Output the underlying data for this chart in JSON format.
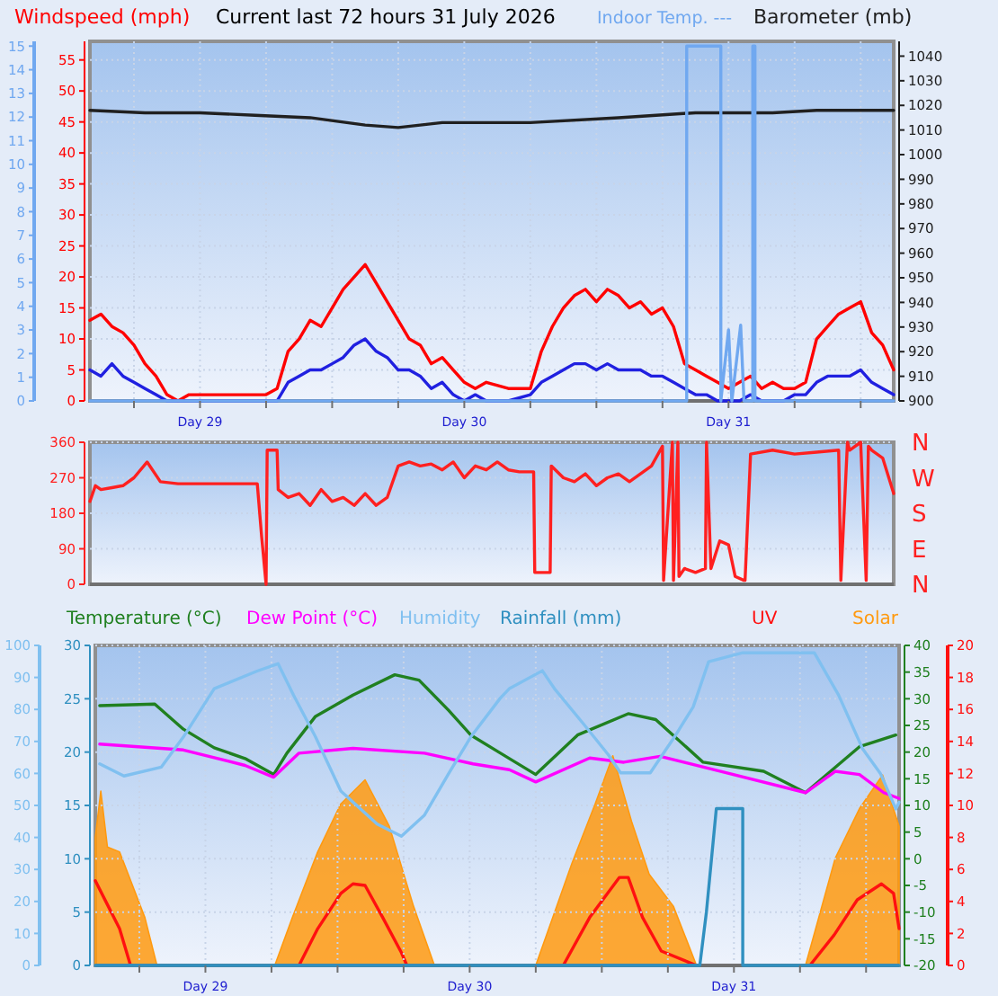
{
  "chart_data": [
    {
      "type": "line",
      "title": "Current last 72 hours 31 July 2026",
      "ylabel": "Windspeed (mph)",
      "y2label": "Barometer (mb)",
      "annotations": [
        "Indoor Temp. ---"
      ],
      "grid": true,
      "xlim": [
        "2026-07-28T14:00",
        "2026-07-31T15:00"
      ],
      "xticks": [
        {
          "value": "2026-07-28T18:00",
          "label": null
        },
        {
          "value": "2026-07-29",
          "label": "Day 29"
        },
        {
          "value": "2026-07-29T06:00",
          "label": null
        },
        {
          "value": "2026-07-29T12:00",
          "label": null
        },
        {
          "value": "2026-07-29T18:00",
          "label": null
        },
        {
          "value": "2026-07-30",
          "label": "Day 30"
        },
        {
          "value": "2026-07-30T06:00",
          "label": null
        },
        {
          "value": "2026-07-30T12:00",
          "label": null
        },
        {
          "value": "2026-07-30T18:00",
          "label": null
        },
        {
          "value": "2026-07-31",
          "label": "Day 31"
        },
        {
          "value": "2026-07-31T06:00",
          "label": null
        },
        {
          "value": "2026-07-31T12:00",
          "label": null
        }
      ],
      "ylim": [
        0,
        58
      ],
      "yticks": [
        0,
        5,
        10,
        15,
        20,
        25,
        30,
        35,
        40,
        45,
        50,
        55
      ],
      "y2lim": [
        900,
        1046
      ],
      "y2ticks": [
        900,
        910,
        920,
        930,
        940,
        950,
        960,
        970,
        980,
        990,
        1000,
        1010,
        1020,
        1030,
        1040
      ],
      "y3lim": [
        0,
        15.2
      ],
      "y3ticks": [
        0,
        1,
        2,
        3,
        4,
        5,
        6,
        7,
        8,
        9,
        10,
        11,
        12,
        13,
        14,
        15
      ],
      "x": [
        "2026-07-28T14:00",
        "2026-07-28T15:00",
        "2026-07-28T16:00",
        "2026-07-28T17:00",
        "2026-07-28T18:00",
        "2026-07-28T19:00",
        "2026-07-28T20:00",
        "2026-07-28T21:00",
        "2026-07-28T22:00",
        "2026-07-28T23:00",
        "2026-07-29T00:00",
        "2026-07-29T02:00",
        "2026-07-29T04:00",
        "2026-07-29T06:00",
        "2026-07-29T07:00",
        "2026-07-29T08:00",
        "2026-07-29T09:00",
        "2026-07-29T10:00",
        "2026-07-29T11:00",
        "2026-07-29T12:00",
        "2026-07-29T13:00",
        "2026-07-29T14:00",
        "2026-07-29T15:00",
        "2026-07-29T16:00",
        "2026-07-29T17:00",
        "2026-07-29T18:00",
        "2026-07-29T19:00",
        "2026-07-29T20:00",
        "2026-07-29T21:00",
        "2026-07-29T22:00",
        "2026-07-29T23:00",
        "2026-07-30T00:00",
        "2026-07-30T01:00",
        "2026-07-30T02:00",
        "2026-07-30T04:00",
        "2026-07-30T06:00",
        "2026-07-30T07:00",
        "2026-07-30T08:00",
        "2026-07-30T09:00",
        "2026-07-30T10:00",
        "2026-07-30T11:00",
        "2026-07-30T12:00",
        "2026-07-30T13:00",
        "2026-07-30T14:00",
        "2026-07-30T15:00",
        "2026-07-30T16:00",
        "2026-07-30T17:00",
        "2026-07-30T18:00",
        "2026-07-30T19:00",
        "2026-07-30T20:00",
        "2026-07-30T21:00",
        "2026-07-30T22:00",
        "2026-07-30T23:00",
        "2026-07-31T00:00",
        "2026-07-31T01:00",
        "2026-07-31T02:00",
        "2026-07-31T03:00",
        "2026-07-31T04:00",
        "2026-07-31T05:00",
        "2026-07-31T06:00",
        "2026-07-31T07:00",
        "2026-07-31T08:00",
        "2026-07-31T09:00",
        "2026-07-31T10:00",
        "2026-07-31T11:00",
        "2026-07-31T12:00",
        "2026-07-31T13:00",
        "2026-07-31T14:00",
        "2026-07-31T15:00"
      ],
      "series": [
        {
          "color": "#ff0000",
          "values": [
            13,
            14,
            12,
            11,
            9,
            6,
            4,
            1,
            0,
            1,
            1,
            1,
            1,
            1,
            2,
            8,
            10,
            13,
            12,
            15,
            18,
            20,
            22,
            19,
            16,
            13,
            10,
            9,
            6,
            7,
            5,
            3,
            2,
            3,
            2,
            2,
            8,
            12,
            15,
            17,
            18,
            16,
            18,
            17,
            15,
            16,
            14,
            15,
            12,
            6,
            5,
            4,
            3,
            2,
            3,
            4,
            2,
            3,
            2,
            2,
            3,
            10,
            12,
            14,
            15,
            16,
            11,
            9,
            5
          ]
        },
        {
          "color": "#2020e0",
          "values": [
            5,
            4,
            6,
            4,
            3,
            2,
            1,
            0,
            0,
            0,
            0,
            0,
            0,
            0,
            0,
            3,
            4,
            5,
            5,
            6,
            7,
            9,
            10,
            8,
            7,
            5,
            5,
            4,
            2,
            3,
            1,
            0,
            1,
            0,
            0,
            1,
            3,
            4,
            5,
            6,
            6,
            5,
            6,
            5,
            5,
            5,
            4,
            4,
            3,
            2,
            1,
            1,
            0,
            0,
            0,
            1,
            0,
            0,
            0,
            1,
            1,
            3,
            4,
            4,
            4,
            5,
            3,
            2,
            1
          ]
        },
        {
          "color": "#202020",
          "axis": "y2",
          "x": [
            "2026-07-28T14:00",
            "2026-07-28T19:00",
            "2026-07-29T00:00",
            "2026-07-29T05:00",
            "2026-07-29T10:00",
            "2026-07-29T15:00",
            "2026-07-29T18:00",
            "2026-07-29T22:00",
            "2026-07-30T06:00",
            "2026-07-30T14:00",
            "2026-07-30T21:00",
            "2026-07-31T04:00",
            "2026-07-31T08:00",
            "2026-07-31T15:00"
          ],
          "values": [
            1018,
            1017,
            1017,
            1016,
            1015,
            1012,
            1011,
            1013,
            1013,
            1015,
            1017,
            1017,
            1018,
            1018
          ]
        },
        {
          "color": "#70a8f0",
          "axis": "y3",
          "x": [
            "2026-07-28T14:00",
            "2026-07-30T20:12",
            "2026-07-30T20:12",
            "2026-07-30T23:18",
            "2026-07-30T23:18",
            "2026-07-31T00:00",
            "2026-07-31T00:18",
            "2026-07-31T01:06",
            "2026-07-31T01:24",
            "2026-07-31T02:12",
            "2026-07-31T02:12",
            "2026-07-31T02:24",
            "2026-07-31T02:24",
            "2026-07-31T15:00"
          ],
          "values": [
            0,
            0,
            15,
            15,
            0,
            3,
            0,
            3.2,
            0,
            0,
            15,
            15,
            0,
            0
          ]
        }
      ]
    },
    {
      "type": "line",
      "grid": "y",
      "tick_labels": "y",
      "annotations": [
        "N",
        "W",
        "S",
        "E",
        "N"
      ],
      "xlim": [
        "2026-07-28T14:00",
        "2026-07-31T15:00"
      ],
      "ylim": [
        0,
        360
      ],
      "yticks": [
        0,
        90,
        180,
        270,
        360
      ],
      "series": [
        {
          "color": "#ff2020",
          "x": [
            "2026-07-28T14:00",
            "2026-07-28T14:30",
            "2026-07-28T15:00",
            "2026-07-28T16:00",
            "2026-07-28T17:00",
            "2026-07-28T18:00",
            "2026-07-28T19:12",
            "2026-07-28T20:24",
            "2026-07-28T22:00",
            "2026-07-29T00:00",
            "2026-07-29T02:00",
            "2026-07-29T05:12",
            "2026-07-29T05:36",
            "2026-07-29T06:00",
            "2026-07-29T06:06",
            "2026-07-29T06:12",
            "2026-07-29T07:00",
            "2026-07-29T07:06",
            "2026-07-29T08:00",
            "2026-07-29T09:00",
            "2026-07-29T10:00",
            "2026-07-29T11:00",
            "2026-07-29T12:00",
            "2026-07-29T13:00",
            "2026-07-29T14:00",
            "2026-07-29T15:00",
            "2026-07-29T16:00",
            "2026-07-29T17:00",
            "2026-07-29T18:00",
            "2026-07-29T19:00",
            "2026-07-29T20:00",
            "2026-07-29T21:00",
            "2026-07-29T22:00",
            "2026-07-29T23:00",
            "2026-07-30T00:00",
            "2026-07-30T01:00",
            "2026-07-30T02:00",
            "2026-07-30T03:00",
            "2026-07-30T04:00",
            "2026-07-30T05:00",
            "2026-07-30T06:18",
            "2026-07-30T06:24",
            "2026-07-30T07:48",
            "2026-07-30T07:54",
            "2026-07-30T09:00",
            "2026-07-30T10:00",
            "2026-07-30T11:00",
            "2026-07-30T12:00",
            "2026-07-30T13:00",
            "2026-07-30T14:00",
            "2026-07-30T15:00",
            "2026-07-30T16:00",
            "2026-07-30T17:00",
            "2026-07-30T18:00",
            "2026-07-30T18:06",
            "2026-07-30T18:54",
            "2026-07-30T19:00",
            "2026-07-30T19:24",
            "2026-07-30T19:30",
            "2026-07-30T20:00",
            "2026-07-30T21:00",
            "2026-07-30T21:54",
            "2026-07-30T22:00",
            "2026-07-30T22:24",
            "2026-07-30T23:12",
            "2026-07-31T00:00",
            "2026-07-31T00:36",
            "2026-07-31T01:24",
            "2026-07-31T01:30",
            "2026-07-31T02:00",
            "2026-07-31T04:00",
            "2026-07-31T06:00",
            "2026-07-31T08:00",
            "2026-07-31T10:00",
            "2026-07-31T10:12",
            "2026-07-31T10:48",
            "2026-07-31T11:00",
            "2026-07-31T12:00",
            "2026-07-31T12:30",
            "2026-07-31T12:42",
            "2026-07-31T13:00",
            "2026-07-31T14:00",
            "2026-07-31T15:00"
          ],
          "values": [
            210,
            250,
            240,
            245,
            250,
            270,
            310,
            260,
            255,
            255,
            255,
            255,
            120,
            0,
            340,
            340,
            340,
            240,
            220,
            230,
            200,
            240,
            210,
            220,
            200,
            230,
            200,
            220,
            300,
            310,
            300,
            305,
            290,
            310,
            270,
            300,
            290,
            310,
            290,
            285,
            285,
            30,
            30,
            300,
            270,
            260,
            280,
            250,
            270,
            280,
            260,
            280,
            300,
            350,
            10,
            360,
            10,
            360,
            20,
            40,
            30,
            40,
            360,
            40,
            110,
            100,
            20,
            10,
            10,
            330,
            340,
            330,
            335,
            340,
            10,
            360,
            340,
            360,
            10,
            350,
            340,
            320,
            230
          ]
        }
      ]
    },
    {
      "type": "line",
      "legend": "top",
      "grid": true,
      "xlim": [
        "2026-07-28T14:00",
        "2026-07-31T15:00"
      ],
      "xticks": [
        {
          "value": "2026-07-28T18:00",
          "label": null
        },
        {
          "value": "2026-07-29",
          "label": "Day 29"
        },
        {
          "value": "2026-07-29T06:00",
          "label": null
        },
        {
          "value": "2026-07-29T12:00",
          "label": null
        },
        {
          "value": "2026-07-29T18:00",
          "label": null
        },
        {
          "value": "2026-07-30",
          "label": "Day 30"
        },
        {
          "value": "2026-07-30T06:00",
          "label": null
        },
        {
          "value": "2026-07-30T12:00",
          "label": null
        },
        {
          "value": "2026-07-30T18:00",
          "label": null
        },
        {
          "value": "2026-07-31",
          "label": "Day 31"
        },
        {
          "value": "2026-07-31T06:00",
          "label": null
        },
        {
          "value": "2026-07-31T12:00",
          "label": null
        }
      ],
      "ylim": [
        0,
        30
      ],
      "yticks": [
        0,
        5,
        10,
        15,
        20,
        25,
        30
      ],
      "y2lim": [
        -20,
        40
      ],
      "y2ticks": [
        -20,
        -15,
        -10,
        -5,
        0,
        5,
        10,
        15,
        20,
        25,
        30,
        35,
        40
      ],
      "y3lim": [
        0,
        100
      ],
      "y3ticks": [
        0,
        10,
        20,
        30,
        40,
        50,
        60,
        70,
        80,
        90,
        100
      ],
      "series": [
        {
          "name": "Temperature (°C)",
          "color": "#208020",
          "axis": "y2",
          "x": [
            "2026-07-28T14:24",
            "2026-07-28T19:24",
            "2026-07-28T22:00",
            "2026-07-29T00:48",
            "2026-07-29T03:36",
            "2026-07-29T06:12",
            "2026-07-29T07:24",
            "2026-07-29T10:00",
            "2026-07-29T13:24",
            "2026-07-29T17:12",
            "2026-07-29T19:24",
            "2026-07-29T22:06",
            "2026-07-30T00:06",
            "2026-07-30T02:48",
            "2026-07-30T06:00",
            "2026-07-30T09:48",
            "2026-07-30T14:24",
            "2026-07-30T16:54",
            "2026-07-30T21:12",
            "2026-07-31T02:42",
            "2026-07-31T06:30",
            "2026-07-31T11:24",
            "2026-07-31T14:42"
          ],
          "values": [
            28.7,
            29,
            24.3,
            20.8,
            18.8,
            15.8,
            19.8,
            26.7,
            30.7,
            34.5,
            33.5,
            27.8,
            23.2,
            19.8,
            15.8,
            23.2,
            27.2,
            26.1,
            18.1,
            16.4,
            12.4,
            21,
            23.2
          ]
        },
        {
          "name": "Dew Point (°C)",
          "color": "#ff00ff",
          "axis": "y2",
          "x": [
            "2026-07-28T14:24",
            "2026-07-28T22:00",
            "2026-07-29T03:36",
            "2026-07-29T06:12",
            "2026-07-29T08:30",
            "2026-07-29T13:24",
            "2026-07-29T19:54",
            "2026-07-30T00:18",
            "2026-07-30T03:36",
            "2026-07-30T06:00",
            "2026-07-30T10:54",
            "2026-07-30T14:00",
            "2026-07-30T17:18",
            "2026-07-30T22:48",
            "2026-07-31T06:30",
            "2026-07-31T09:12",
            "2026-07-31T11:24",
            "2026-07-31T13:36",
            "2026-07-31T15:00"
          ],
          "values": [
            21.5,
            20.4,
            17.5,
            15.3,
            19.8,
            20.7,
            19.8,
            17.8,
            16.7,
            14.4,
            18.9,
            18.1,
            19.2,
            16.4,
            12.4,
            16.4,
            15.8,
            12.4,
            11.3
          ]
        },
        {
          "name": "Humidity",
          "color": "#80c0f0",
          "axis": "y3",
          "x": [
            "2026-07-28T14:24",
            "2026-07-28T16:36",
            "2026-07-28T20:00",
            "2026-07-28T22:00",
            "2026-07-29T00:48",
            "2026-07-29T04:42",
            "2026-07-29T06:36",
            "2026-07-29T08:00",
            "2026-07-29T10:00",
            "2026-07-29T12:18",
            "2026-07-29T15:36",
            "2026-07-29T17:48",
            "2026-07-29T19:54",
            "2026-07-29T22:06",
            "2026-07-30T00:06",
            "2026-07-30T02:48",
            "2026-07-30T03:36",
            "2026-07-30T06:36",
            "2026-07-30T07:42",
            "2026-07-30T10:24",
            "2026-07-30T12:36",
            "2026-07-30T13:42",
            "2026-07-30T16:24",
            "2026-07-30T18:36",
            "2026-07-30T20:18",
            "2026-07-30T21:42",
            "2026-07-31T00:48",
            "2026-07-31T07:18",
            "2026-07-31T09:30",
            "2026-07-31T11:42",
            "2026-07-31T13:18",
            "2026-07-31T14:42",
            "2026-07-31T15:00"
          ],
          "values": [
            63,
            59.2,
            62,
            71.4,
            86.5,
            92,
            94.3,
            84.5,
            71.4,
            54.5,
            44.2,
            40.4,
            47,
            60,
            71.4,
            83.6,
            86.5,
            92.1,
            86.5,
            75.2,
            65.8,
            60.2,
            60.2,
            71.4,
            80.8,
            94.9,
            97.7,
            97.7,
            84.5,
            67.6,
            60,
            48.9,
            51
          ]
        },
        {
          "name": "Rainfall (mm)",
          "color": "#3090c0",
          "x": [
            "2026-07-28T14:00",
            "2026-07-30T20:54",
            "2026-07-30T21:30",
            "2026-07-30T22:24",
            "2026-07-31T00:48",
            "2026-07-31T00:48",
            "2026-07-31T15:00"
          ],
          "values": [
            0,
            0,
            5,
            14.7,
            14.7,
            0,
            0
          ]
        }
      ]
    },
    {
      "type": "line",
      "legend": "top",
      "tick_labels": "y",
      "xlim": [
        "2026-07-28T14:00",
        "2026-07-31T15:00"
      ],
      "ylim": [
        0,
        20
      ],
      "yticks": [
        0,
        2,
        4,
        6,
        8,
        10,
        12,
        14,
        16,
        18,
        20
      ],
      "series": [
        {
          "name": "UV",
          "color": "#ff1010",
          "x": [
            "2026-07-28T14:00",
            "2026-07-28T15:06",
            "2026-07-28T16:12",
            "2026-07-28T17:12",
            "2026-07-28T18:30",
            "2026-07-29T08:30",
            "2026-07-29T10:12",
            "2026-07-29T12:18",
            "2026-07-29T13:24",
            "2026-07-29T14:30",
            "2026-07-29T16:06",
            "2026-07-29T17:48",
            "2026-07-29T18:18",
            "2026-07-30T08:30",
            "2026-07-30T10:54",
            "2026-07-30T13:36",
            "2026-07-30T14:24",
            "2026-07-30T15:42",
            "2026-07-30T17:24",
            "2026-07-30T20:36",
            "2026-07-31T06:54",
            "2026-07-31T09:06",
            "2026-07-31T11:12",
            "2026-07-31T13:24",
            "2026-07-31T14:30",
            "2026-07-31T15:00"
          ],
          "values": [
            5.3,
            3.8,
            2.3,
            0,
            0,
            0,
            2.3,
            4.5,
            5.1,
            5,
            3,
            0.8,
            0,
            0,
            3,
            5.5,
            5.5,
            3,
            0.9,
            0,
            0,
            1.9,
            4.1,
            5.1,
            4.5,
            2.3
          ]
        },
        {
          "name": "Solar",
          "type": "area",
          "color": "#ff9a10",
          "x": [
            "2026-07-28T14:00",
            "2026-07-28T14:30",
            "2026-07-28T15:06",
            "2026-07-28T16:12",
            "2026-07-28T18:30",
            "2026-07-28T19:36",
            "2026-07-29T06:18",
            "2026-07-29T07:54",
            "2026-07-29T10:12",
            "2026-07-29T12:18",
            "2026-07-29T14:30",
            "2026-07-29T16:42",
            "2026-07-29T18:54",
            "2026-07-29T20:48",
            "2026-07-30T06:00",
            "2026-07-30T09:18",
            "2026-07-30T11:24",
            "2026-07-30T13:00",
            "2026-07-30T14:42",
            "2026-07-30T16:18",
            "2026-07-30T18:30",
            "2026-07-30T20:36",
            "2026-07-31T06:30",
            "2026-07-31T09:12",
            "2026-07-31T11:24",
            "2026-07-31T13:30",
            "2026-07-31T15:00"
          ],
          "values": [
            8,
            10.9,
            7.4,
            7.1,
            3,
            0,
            0,
            3,
            7.1,
            10.1,
            11.6,
            8.7,
            3.7,
            0,
            0,
            6.4,
            10.1,
            13.1,
            9,
            5.7,
            3.7,
            0,
            0,
            6.7,
            9.8,
            11.9,
            8.7
          ]
        }
      ]
    }
  ]
}
